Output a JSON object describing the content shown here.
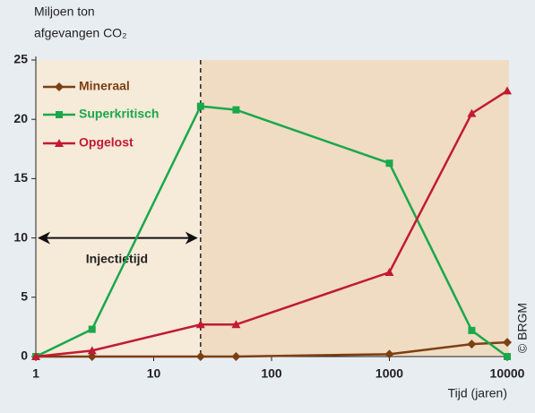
{
  "chart_data": {
    "type": "line",
    "y_label": [
      "Miljoen ton",
      "afgevangen CO₂"
    ],
    "x_label": "Tijd (jaren)",
    "credit": "© BRGM",
    "x_log": true,
    "xlim": [
      1,
      10000
    ],
    "xticks": [
      1,
      10,
      100,
      1000,
      10000
    ],
    "ylim": [
      0,
      25
    ],
    "yticks": [
      0,
      5,
      10,
      15,
      20,
      25
    ],
    "legend": "upper left",
    "series": [
      {
        "name": "Mineraal",
        "color": "#7b3f14",
        "marker": "diamond",
        "x": [
          1,
          3,
          25,
          50,
          1000,
          5000,
          10000
        ],
        "values": [
          0,
          0,
          0,
          0,
          0.2,
          1.05,
          1.2
        ]
      },
      {
        "name": "Superkritisch",
        "color": "#1aa84a",
        "marker": "square",
        "x": [
          1,
          3,
          25,
          50,
          1000,
          5000,
          10000
        ],
        "values": [
          0,
          2.3,
          21.1,
          20.8,
          16.3,
          2.2,
          0
        ]
      },
      {
        "name": "Opgelost",
        "color": "#c21a32",
        "marker": "triangle",
        "x": [
          1,
          3,
          25,
          50,
          1000,
          5000,
          10000
        ],
        "values": [
          0,
          0.5,
          2.7,
          2.7,
          7.1,
          20.5,
          22.4
        ]
      }
    ],
    "vline": {
      "x": 25
    },
    "annotation": {
      "text": "Injectietijd",
      "x_from": 1,
      "x_to": 25,
      "y": 10
    }
  }
}
